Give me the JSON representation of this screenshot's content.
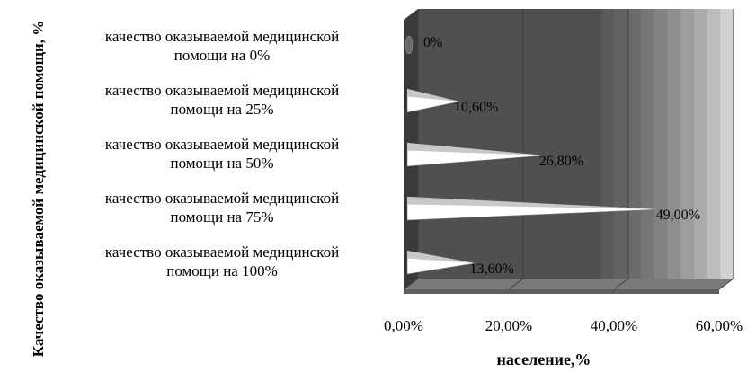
{
  "chart_data": {
    "type": "bar",
    "orientation": "horizontal",
    "style": "3d-cone",
    "categories": [
      [
        "качество оказываемой медицинской",
        "помощи на 0%"
      ],
      [
        "качество оказываемой медицинской",
        "помощи на 25%"
      ],
      [
        "качество оказываемой медицинской",
        "помощи на 50%"
      ],
      [
        "качество оказываемой медицинской",
        "помощи на 75%"
      ],
      [
        "качество оказываемой медицинской",
        "помощи на 100%"
      ]
    ],
    "values": [
      0,
      10.6,
      26.8,
      49.0,
      13.6
    ],
    "data_labels": [
      "0%",
      "10,60%",
      "26,80%",
      "49,00%",
      "13,60%"
    ],
    "xlabel": "население,%",
    "ylabel": "Качество оказываемой медицинской помощи, %",
    "xlim": [
      0,
      60
    ],
    "xticks": [
      "0,00%",
      "20,00%",
      "40,00%",
      "60,00%"
    ],
    "grid": true,
    "legend": "none",
    "colors": {
      "cone_fill": "#ffffff",
      "cone_shade": "#c8c8c8",
      "wall_dark": "#505050",
      "floor": "#7a7a7a",
      "text": "#000000"
    }
  }
}
